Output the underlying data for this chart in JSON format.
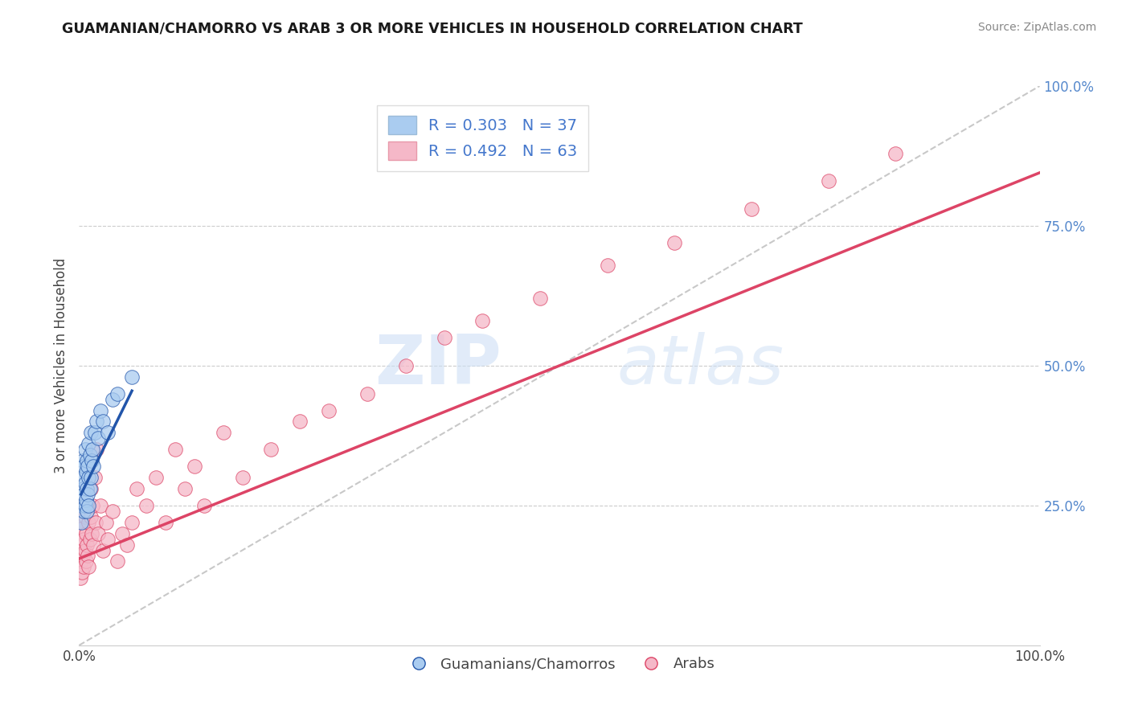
{
  "title": "GUAMANIAN/CHAMORRO VS ARAB 3 OR MORE VEHICLES IN HOUSEHOLD CORRELATION CHART",
  "source": "Source: ZipAtlas.com",
  "ylabel": "3 or more Vehicles in Household",
  "xlim": [
    0,
    1.0
  ],
  "ylim": [
    0,
    1.0
  ],
  "watermark_zip": "ZIP",
  "watermark_atlas": "atlas",
  "legend_label1": "Guamanians/Chamorros",
  "legend_label2": "Arabs",
  "r1": "0.303",
  "n1": "37",
  "r2": "0.492",
  "n2": "63",
  "color1": "#aaccf0",
  "color2": "#f5b8c8",
  "line_color1": "#2255aa",
  "line_color2": "#dd4466",
  "background": "#ffffff",
  "guam_x": [
    0.002,
    0.003,
    0.003,
    0.004,
    0.004,
    0.005,
    0.005,
    0.005,
    0.006,
    0.006,
    0.006,
    0.007,
    0.007,
    0.008,
    0.008,
    0.008,
    0.009,
    0.009,
    0.01,
    0.01,
    0.01,
    0.011,
    0.011,
    0.012,
    0.012,
    0.013,
    0.014,
    0.015,
    0.016,
    0.018,
    0.02,
    0.022,
    0.025,
    0.03,
    0.035,
    0.04,
    0.055
  ],
  "guam_y": [
    0.22,
    0.25,
    0.3,
    0.28,
    0.33,
    0.24,
    0.27,
    0.32,
    0.25,
    0.29,
    0.35,
    0.26,
    0.31,
    0.24,
    0.28,
    0.33,
    0.27,
    0.32,
    0.25,
    0.3,
    0.36,
    0.28,
    0.34,
    0.3,
    0.38,
    0.33,
    0.35,
    0.32,
    0.38,
    0.4,
    0.37,
    0.42,
    0.4,
    0.38,
    0.44,
    0.45,
    0.48
  ],
  "arab_x": [
    0.001,
    0.001,
    0.002,
    0.002,
    0.003,
    0.003,
    0.003,
    0.004,
    0.004,
    0.005,
    0.005,
    0.005,
    0.006,
    0.006,
    0.007,
    0.007,
    0.008,
    0.008,
    0.009,
    0.01,
    0.01,
    0.011,
    0.012,
    0.012,
    0.013,
    0.014,
    0.015,
    0.016,
    0.017,
    0.018,
    0.02,
    0.022,
    0.025,
    0.028,
    0.03,
    0.035,
    0.04,
    0.045,
    0.05,
    0.055,
    0.06,
    0.07,
    0.08,
    0.09,
    0.1,
    0.11,
    0.12,
    0.13,
    0.15,
    0.17,
    0.2,
    0.23,
    0.26,
    0.3,
    0.34,
    0.38,
    0.42,
    0.48,
    0.55,
    0.62,
    0.7,
    0.78,
    0.85
  ],
  "arab_y": [
    0.12,
    0.17,
    0.15,
    0.2,
    0.13,
    0.18,
    0.22,
    0.16,
    0.21,
    0.14,
    0.19,
    0.24,
    0.17,
    0.23,
    0.15,
    0.2,
    0.18,
    0.25,
    0.16,
    0.14,
    0.22,
    0.19,
    0.23,
    0.28,
    0.2,
    0.25,
    0.18,
    0.3,
    0.22,
    0.35,
    0.2,
    0.25,
    0.17,
    0.22,
    0.19,
    0.24,
    0.15,
    0.2,
    0.18,
    0.22,
    0.28,
    0.25,
    0.3,
    0.22,
    0.35,
    0.28,
    0.32,
    0.25,
    0.38,
    0.3,
    0.35,
    0.4,
    0.42,
    0.45,
    0.5,
    0.55,
    0.58,
    0.62,
    0.68,
    0.72,
    0.78,
    0.83,
    0.88
  ],
  "arab_line_x0": 0.0,
  "arab_line_y0": 0.155,
  "arab_line_x1": 1.0,
  "arab_line_y1": 0.845,
  "guam_line_x0": 0.002,
  "guam_line_y0": 0.27,
  "guam_line_x1": 0.055,
  "guam_line_y1": 0.455
}
